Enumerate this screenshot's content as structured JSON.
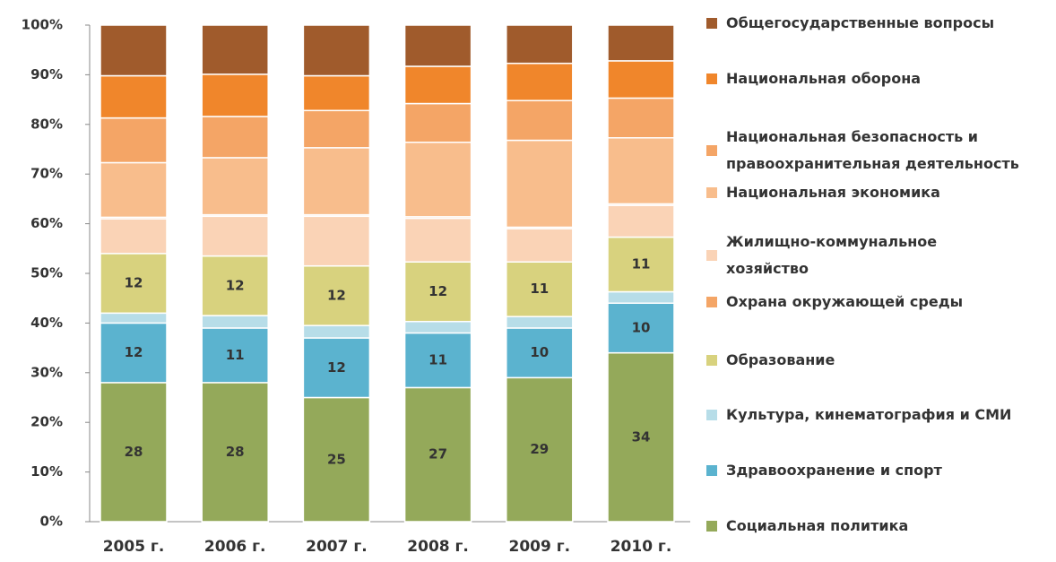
{
  "chart_data": {
    "type": "stacked_bar",
    "categories": [
      "2005 г.",
      "2006 г.",
      "2007 г.",
      "2008 г.",
      "2009 г.",
      "2010 г."
    ],
    "ylim": [
      0,
      100
    ],
    "yticks": [
      {
        "value": 0,
        "label": "0%"
      },
      {
        "value": 10,
        "label": "10%"
      },
      {
        "value": 20,
        "label": "20%"
      },
      {
        "value": 30,
        "label": "30%"
      },
      {
        "value": 40,
        "label": "40%"
      },
      {
        "value": 50,
        "label": "50%"
      },
      {
        "value": 60,
        "label": "60%"
      },
      {
        "value": 70,
        "label": "70%"
      },
      {
        "value": 80,
        "label": "80%"
      },
      {
        "value": 90,
        "label": "90%"
      },
      {
        "value": 100,
        "label": "100%"
      }
    ],
    "grid": false,
    "legend": "right",
    "series": [
      {
        "name": "Социальная политика",
        "color": "#94a95a",
        "show_labels": true,
        "values": [
          28,
          28,
          25,
          27,
          29,
          34
        ]
      },
      {
        "name": "Здравоохранение и спорт",
        "color": "#5bb3cf",
        "show_labels": true,
        "values": [
          12,
          11,
          12,
          11,
          10,
          10
        ]
      },
      {
        "name": "Культура, кинематография и СМИ",
        "color": "#b7dde8",
        "show_labels": false,
        "values": [
          2,
          2.5,
          2.5,
          2.3,
          2.3,
          2.3
        ]
      },
      {
        "name": "Образование",
        "color": "#d8d27e",
        "show_labels": true,
        "values": [
          12,
          12,
          12,
          12,
          11,
          11
        ]
      },
      {
        "name": "Жилищно-коммунальное\nхозяйство",
        "color": "#fad3b6",
        "show_labels": false,
        "values": [
          7,
          8,
          10,
          8.8,
          6.7,
          6.4
        ]
      },
      {
        "name": "Охрана окружающей среды",
        "color": "#f4a566",
        "show_labels": false,
        "values": [
          0.3,
          0.3,
          0.3,
          0.3,
          0.3,
          0.3
        ]
      },
      {
        "name": "Национальная экономика",
        "color": "#f8bd8c",
        "show_labels": false,
        "values": [
          11,
          11.5,
          13.5,
          15,
          17.5,
          13.3
        ]
      },
      {
        "name": "Национальная  безопасность и\nправоохранительная деятельность",
        "color": "#f4a566",
        "show_labels": false,
        "values": [
          9,
          8.3,
          7.5,
          7.8,
          8,
          8
        ]
      },
      {
        "name": "Национальная оборона",
        "color": "#f0862b",
        "show_labels": false,
        "values": [
          8.5,
          8.5,
          7,
          7.5,
          7.5,
          7.5
        ]
      },
      {
        "name": "Общегосударственные вопросы",
        "color": "#a05b2c",
        "show_labels": false,
        "values": [
          10.2,
          9.9,
          10.2,
          8.3,
          7.7,
          7.2
        ]
      }
    ]
  }
}
